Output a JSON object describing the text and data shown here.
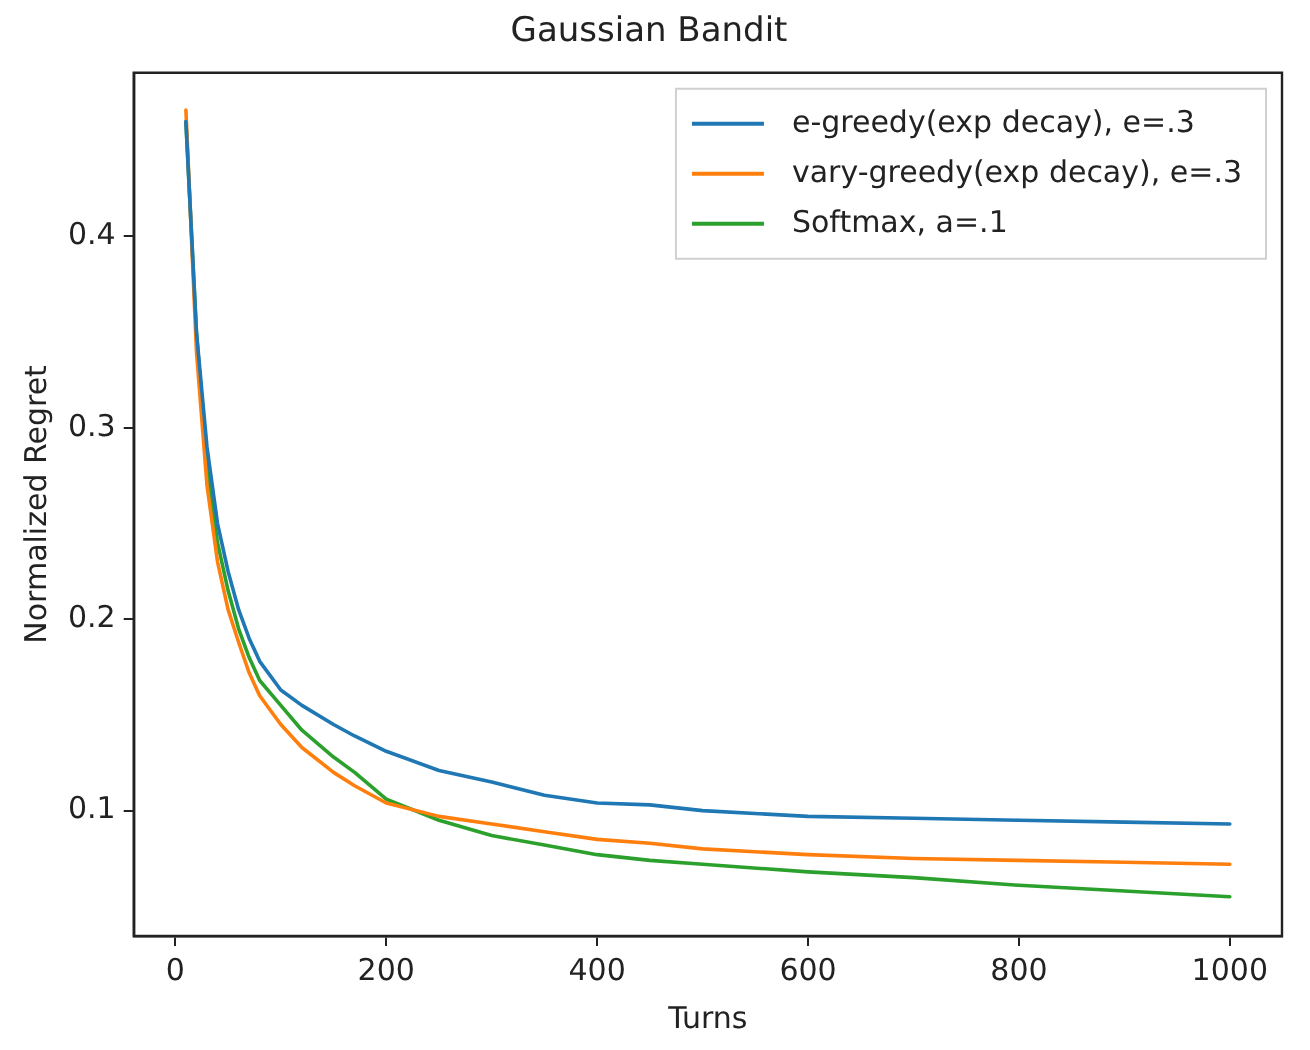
{
  "chart_data": {
    "type": "line",
    "title": "Gaussian Bandit",
    "xlabel": "Turns",
    "ylabel": "Normalized Regret",
    "xlim": [
      -39.5,
      1049.5
    ],
    "ylim": [
      0.0345,
      0.4855
    ],
    "xticks": [
      0,
      200,
      400,
      600,
      800,
      1000
    ],
    "yticks": [
      0.1,
      0.2,
      0.3,
      0.4
    ],
    "grid": false,
    "legend": "top right",
    "marker": "none",
    "line_style": "solid",
    "x": [
      10,
      20,
      30,
      40,
      50,
      60,
      70,
      80,
      100,
      120,
      150,
      170,
      200,
      250,
      300,
      350,
      400,
      450,
      500,
      600,
      700,
      800,
      900,
      1000
    ],
    "series": [
      {
        "name": "e-greedy(exp decay), e=.3",
        "color": "#1f77b4",
        "values": [
          0.46,
          0.35,
          0.29,
          0.25,
          0.225,
          0.205,
          0.19,
          0.178,
          0.163,
          0.155,
          0.145,
          0.139,
          0.131,
          0.121,
          0.115,
          0.108,
          0.104,
          0.103,
          0.1,
          0.097,
          0.096,
          0.095,
          0.094,
          0.093
        ]
      },
      {
        "name": "vary-greedy(exp decay), e=.3",
        "color": "#ff7f0e",
        "values": [
          0.466,
          0.34,
          0.27,
          0.23,
          0.205,
          0.188,
          0.172,
          0.16,
          0.145,
          0.133,
          0.12,
          0.113,
          0.104,
          0.097,
          0.093,
          0.089,
          0.085,
          0.083,
          0.08,
          0.077,
          0.075,
          0.074,
          0.073,
          0.072
        ]
      },
      {
        "name": "Softmax, a=.1",
        "color": "#2ca02c",
        "values": [
          0.46,
          0.35,
          0.28,
          0.24,
          0.215,
          0.195,
          0.18,
          0.168,
          0.155,
          0.142,
          0.128,
          0.12,
          0.106,
          0.095,
          0.087,
          0.082,
          0.077,
          0.074,
          0.072,
          0.068,
          0.065,
          0.061,
          0.058,
          0.055
        ]
      }
    ]
  }
}
